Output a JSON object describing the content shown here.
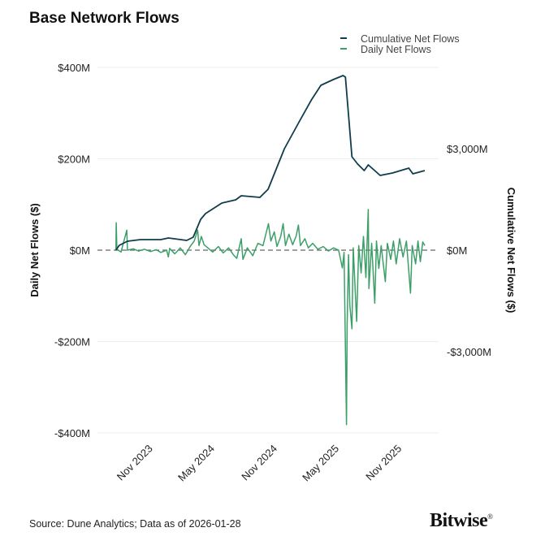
{
  "title": "Base Network Flows",
  "source": "Source: Dune Analytics; Data as of 2026-01-28",
  "logo": "Bitwise",
  "colors": {
    "cumulative": "#0f3d4c",
    "daily": "#3c9f68",
    "grid": "#ececec",
    "zero_line": "#666666"
  },
  "chart_data": {
    "type": "line",
    "title": "Base Network Flows",
    "legend": {
      "placement": "top-right",
      "entries": [
        "Cumulative Net Flows",
        "Daily Net Flows"
      ]
    },
    "grid": true,
    "x_range": [
      "2023-08-01",
      "2026-01-28"
    ],
    "x_ticks": [
      {
        "date": "2023-11-01",
        "label": "Nov 2023"
      },
      {
        "date": "2024-05-01",
        "label": "May 2024"
      },
      {
        "date": "2024-11-01",
        "label": "Nov 2024"
      },
      {
        "date": "2025-05-01",
        "label": "May 2025"
      },
      {
        "date": "2025-11-01",
        "label": "Nov 2025"
      }
    ],
    "y_left": {
      "label": "Daily Net Flows ($)",
      "unit": "$M",
      "ylim": [
        -400,
        400
      ],
      "ticks": [
        {
          "v": 400,
          "label": "$400M"
        },
        {
          "v": 200,
          "label": "$200M"
        },
        {
          "v": 0,
          "label": "$0M"
        },
        {
          "v": -200,
          "label": "-$200M"
        },
        {
          "v": -400,
          "label": "-$400M"
        }
      ]
    },
    "y_right": {
      "label": "Cumulative Net Flows ($)",
      "unit": "$M",
      "ylim": [
        -5400,
        5400
      ],
      "ticks": [
        {
          "v": 3000,
          "label": "$3,000M"
        },
        {
          "v": 0,
          "label": "$0M"
        },
        {
          "v": -3000,
          "label": "-$3,000M"
        }
      ]
    },
    "series": [
      {
        "name": "Cumulative Net Flows",
        "axis": "right",
        "points": [
          [
            "2023-08-05",
            0
          ],
          [
            "2023-08-15",
            144
          ],
          [
            "2023-09-08",
            264
          ],
          [
            "2023-10-16",
            312
          ],
          [
            "2023-12-15",
            312
          ],
          [
            "2024-01-06",
            360
          ],
          [
            "2024-02-29",
            288
          ],
          [
            "2024-03-19",
            384
          ],
          [
            "2024-04-10",
            912
          ],
          [
            "2024-04-24",
            1080
          ],
          [
            "2024-06-11",
            1392
          ],
          [
            "2024-07-22",
            1488
          ],
          [
            "2024-08-07",
            1608
          ],
          [
            "2024-10-01",
            1560
          ],
          [
            "2024-10-25",
            1800
          ],
          [
            "2024-12-12",
            3000
          ],
          [
            "2025-01-24",
            3792
          ],
          [
            "2025-03-01",
            4440
          ],
          [
            "2025-03-29",
            4872
          ],
          [
            "2025-05-04",
            5040
          ],
          [
            "2025-06-02",
            5160
          ],
          [
            "2025-06-09",
            5112
          ],
          [
            "2025-06-28",
            2760
          ],
          [
            "2025-07-15",
            2544
          ],
          [
            "2025-08-03",
            2352
          ],
          [
            "2025-08-15",
            2520
          ],
          [
            "2025-09-19",
            2208
          ],
          [
            "2025-10-25",
            2280
          ],
          [
            "2025-12-12",
            2424
          ],
          [
            "2025-12-24",
            2256
          ],
          [
            "2026-01-28",
            2352
          ]
        ]
      },
      {
        "name": "Daily Net Flows",
        "axis": "left",
        "points": [
          [
            "2023-08-05",
            0
          ],
          [
            "2023-08-06",
            60
          ],
          [
            "2023-08-08",
            2
          ],
          [
            "2023-08-20",
            -4
          ],
          [
            "2023-09-06",
            44
          ],
          [
            "2023-09-08",
            0
          ],
          [
            "2023-09-25",
            3
          ],
          [
            "2023-10-10",
            -2
          ],
          [
            "2023-10-28",
            2
          ],
          [
            "2023-11-15",
            -3
          ],
          [
            "2023-12-01",
            1
          ],
          [
            "2023-12-15",
            -5
          ],
          [
            "2024-01-01",
            0
          ],
          [
            "2024-01-06",
            -15
          ],
          [
            "2024-01-10",
            4
          ],
          [
            "2024-01-25",
            -8
          ],
          [
            "2024-02-10",
            5
          ],
          [
            "2024-02-25",
            -10
          ],
          [
            "2024-03-10",
            8
          ],
          [
            "2024-03-22",
            20
          ],
          [
            "2024-04-01",
            44
          ],
          [
            "2024-04-05",
            10
          ],
          [
            "2024-04-12",
            30
          ],
          [
            "2024-04-20",
            12
          ],
          [
            "2024-05-01",
            5
          ],
          [
            "2024-05-15",
            -4
          ],
          [
            "2024-06-01",
            8
          ],
          [
            "2024-06-15",
            -6
          ],
          [
            "2024-07-01",
            5
          ],
          [
            "2024-07-15",
            -10
          ],
          [
            "2024-07-25",
            -18
          ],
          [
            "2024-08-07",
            25
          ],
          [
            "2024-08-12",
            -20
          ],
          [
            "2024-08-25",
            5
          ],
          [
            "2024-09-10",
            -12
          ],
          [
            "2024-09-25",
            15
          ],
          [
            "2024-10-10",
            10
          ],
          [
            "2024-10-26",
            58
          ],
          [
            "2024-11-02",
            20
          ],
          [
            "2024-11-12",
            40
          ],
          [
            "2024-11-20",
            8
          ],
          [
            "2024-12-01",
            30
          ],
          [
            "2024-12-08",
            58
          ],
          [
            "2024-12-15",
            10
          ],
          [
            "2024-12-25",
            35
          ],
          [
            "2025-01-05",
            12
          ],
          [
            "2025-01-15",
            30
          ],
          [
            "2025-01-22",
            55
          ],
          [
            "2025-01-28",
            10
          ],
          [
            "2025-02-10",
            25
          ],
          [
            "2025-02-20",
            5
          ],
          [
            "2025-03-05",
            15
          ],
          [
            "2025-03-20",
            2
          ],
          [
            "2025-04-05",
            8
          ],
          [
            "2025-04-20",
            -2
          ],
          [
            "2025-05-05",
            5
          ],
          [
            "2025-05-20",
            0
          ],
          [
            "2025-05-31",
            -39
          ],
          [
            "2025-06-05",
            -5
          ],
          [
            "2025-06-12",
            -382
          ],
          [
            "2025-06-14",
            -164
          ],
          [
            "2025-06-18",
            -10
          ],
          [
            "2025-06-22",
            -120
          ],
          [
            "2025-06-28",
            -172
          ],
          [
            "2025-07-02",
            5
          ],
          [
            "2025-07-12",
            -156
          ],
          [
            "2025-07-18",
            10
          ],
          [
            "2025-07-25",
            -50
          ],
          [
            "2025-08-01",
            30
          ],
          [
            "2025-08-08",
            -60
          ],
          [
            "2025-08-15",
            89
          ],
          [
            "2025-08-17",
            -84
          ],
          [
            "2025-08-25",
            15
          ],
          [
            "2025-09-03",
            -116
          ],
          [
            "2025-09-08",
            20
          ],
          [
            "2025-09-15",
            -40
          ],
          [
            "2025-09-22",
            10
          ],
          [
            "2025-10-04",
            -69
          ],
          [
            "2025-10-10",
            15
          ],
          [
            "2025-10-20",
            -20
          ],
          [
            "2025-10-28",
            20
          ],
          [
            "2025-11-05",
            -30
          ],
          [
            "2025-11-15",
            25
          ],
          [
            "2025-11-25",
            -15
          ],
          [
            "2025-12-05",
            20
          ],
          [
            "2025-12-17",
            -94
          ],
          [
            "2025-12-22",
            10
          ],
          [
            "2026-01-01",
            -30
          ],
          [
            "2026-01-08",
            20
          ],
          [
            "2026-01-15",
            -25
          ],
          [
            "2026-01-22",
            18
          ],
          [
            "2026-01-28",
            10
          ]
        ]
      }
    ]
  }
}
